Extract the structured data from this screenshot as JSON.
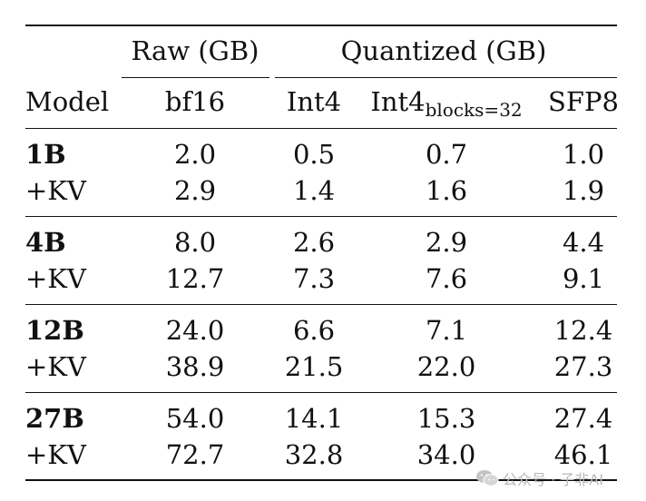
{
  "header": {
    "group_raw": "Raw (GB)",
    "group_quant": "Quantized (GB)",
    "col_model": "Model",
    "col_bf16": "bf16",
    "col_int4": "Int4",
    "col_int4b_main": "Int4",
    "col_int4b_sub": "blocks=32",
    "col_sfp8": "SFP8"
  },
  "rows": [
    {
      "model": "1B",
      "bf16": "2.0",
      "int4": "0.5",
      "int4b": "0.7",
      "sfp8": "1.0",
      "kv_label": "+KV",
      "kv_bf16": "2.9",
      "kv_int4": "1.4",
      "kv_int4b": "1.6",
      "kv_sfp8": "1.9"
    },
    {
      "model": "4B",
      "bf16": "8.0",
      "int4": "2.6",
      "int4b": "2.9",
      "sfp8": "4.4",
      "kv_label": "+KV",
      "kv_bf16": "12.7",
      "kv_int4": "7.3",
      "kv_int4b": "7.6",
      "kv_sfp8": "9.1"
    },
    {
      "model": "12B",
      "bf16": "24.0",
      "int4": "6.6",
      "int4b": "7.1",
      "sfp8": "12.4",
      "kv_label": "+KV",
      "kv_bf16": "38.9",
      "kv_int4": "21.5",
      "kv_int4b": "22.0",
      "kv_sfp8": "27.3"
    },
    {
      "model": "27B",
      "bf16": "54.0",
      "int4": "14.1",
      "int4b": "15.3",
      "sfp8": "27.4",
      "kv_label": "+KV",
      "kv_bf16": "72.7",
      "kv_int4": "32.8",
      "kv_int4b": "34.0",
      "kv_sfp8": "46.1"
    }
  ],
  "watermark": {
    "text": "公众号 · 子非AI",
    "icon": "wechat-icon"
  }
}
